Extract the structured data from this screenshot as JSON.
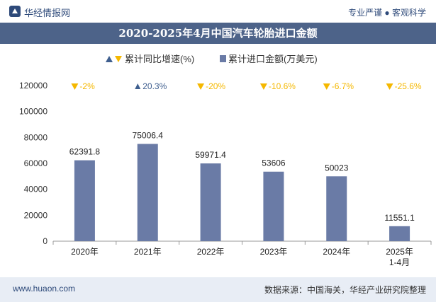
{
  "header": {
    "brand": "华经情报网",
    "tagline": "专业严谨 ● 客观科学"
  },
  "chart_data": {
    "type": "bar",
    "title": "2020-2025年4月中国汽车轮胎进口金额",
    "categories": [
      "2020年",
      "2021年",
      "2022年",
      "2023年",
      "2024年",
      "2025年\n1-4月"
    ],
    "ylim": [
      0,
      120000
    ],
    "yticks": [
      0,
      20000,
      40000,
      60000,
      80000,
      100000,
      120000
    ],
    "series": [
      {
        "name": "累计进口金额(万美元)",
        "values": [
          62391.8,
          75006.4,
          59971.4,
          53606,
          50023,
          11551.1
        ],
        "labels": [
          "62391.8",
          "75006.4",
          "59971.4",
          "53606",
          "50023",
          "11551.1"
        ],
        "color": "#6a7ba6"
      },
      {
        "name": "累计同比增速(%)",
        "values": [
          -2,
          20.3,
          -20,
          -10.6,
          -6.7,
          -25.6
        ],
        "labels": [
          "-2%",
          "20.3%",
          "-20%",
          "-10.6%",
          "-6.7%",
          "-25.6%"
        ],
        "up_color": "#3f5f8f",
        "down_color": "#f5b800"
      }
    ],
    "grid": false,
    "legend_position": "top-center"
  },
  "footer": {
    "url": "www.huaon.com",
    "source": "数据来源：中国海关，华经产业研究院整理"
  }
}
